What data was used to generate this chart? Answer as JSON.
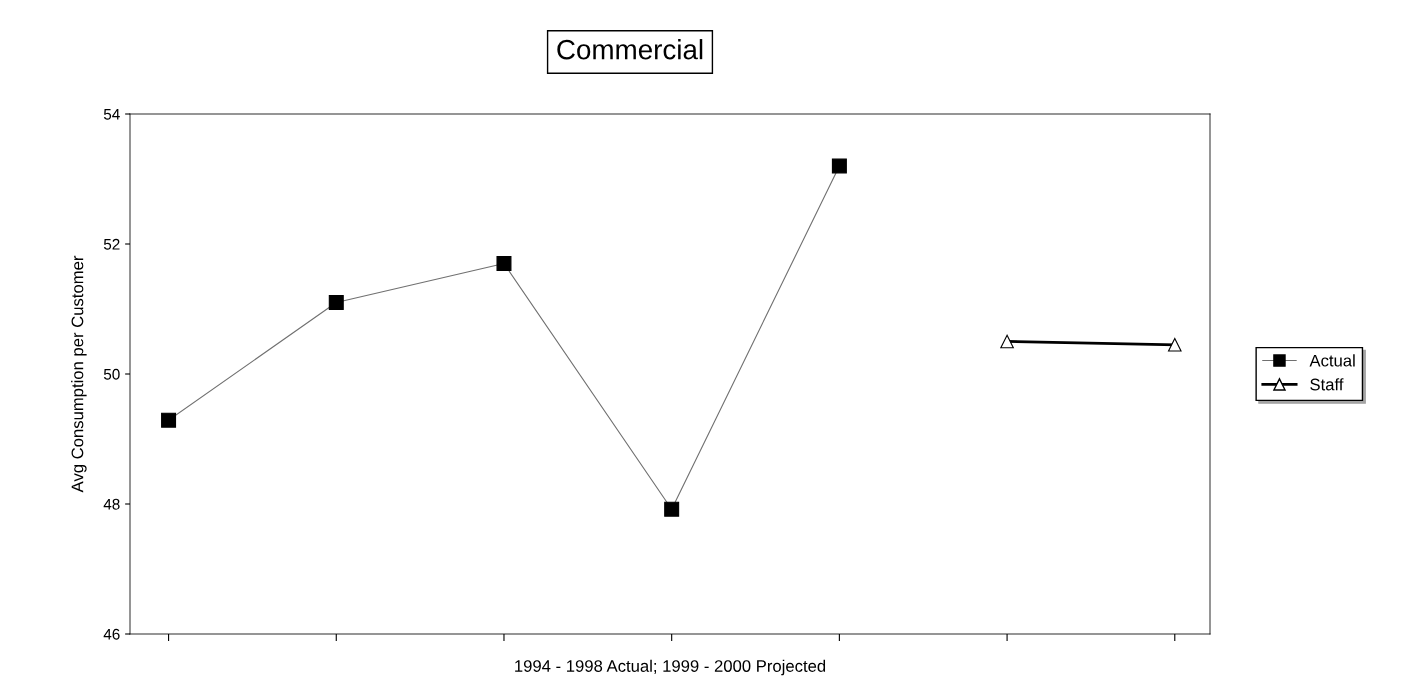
{
  "chart_data": {
    "type": "line",
    "title": "Commercial",
    "xlabel": "1994 - 1998 Actual; 1999 - 2000 Projected",
    "ylabel": "Avg Consumption per Customer",
    "categories": [
      null,
      null,
      null,
      null,
      null,
      null,
      null
    ],
    "series": [
      {
        "name": "Actual",
        "color": "#000000",
        "marker": "square",
        "values": [
          49.29,
          51.1,
          51.7,
          47.92,
          53.2,
          null,
          null
        ]
      },
      {
        "name": "Staff",
        "color": "#000000",
        "marker": "triangle",
        "values": [
          null,
          null,
          null,
          null,
          null,
          50.5,
          50.45
        ]
      }
    ],
    "ylim": [
      46,
      54
    ],
    "yticks": [
      46,
      48,
      50,
      52,
      54
    ],
    "grid": false,
    "legend": "right"
  }
}
